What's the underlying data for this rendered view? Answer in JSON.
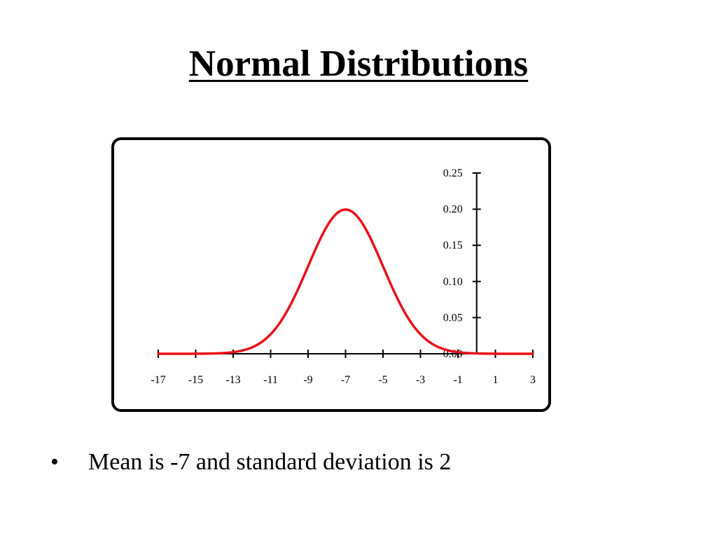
{
  "slide": {
    "title": "Normal Distributions",
    "bullets": [
      {
        "mark": "•",
        "text": "Mean is -7 and standard deviation is 2"
      }
    ]
  },
  "colors": {
    "curve": "#e8101a",
    "axis": "#000000"
  },
  "chart_data": {
    "type": "line",
    "title": "",
    "xlabel": "",
    "ylabel": "",
    "xlim": [
      -17,
      3
    ],
    "ylim": [
      0,
      0.25
    ],
    "xticks": [
      -17,
      -15,
      -13,
      -11,
      -9,
      -7,
      -5,
      -3,
      -1,
      1,
      3
    ],
    "xtick_labels": [
      "-17",
      "-15",
      "-13",
      "-11",
      "-9",
      "-7",
      "-5",
      "-3",
      "-1",
      "1",
      "3"
    ],
    "yticks": [
      0,
      0.05,
      0.1,
      0.15,
      0.2,
      0.25
    ],
    "ytick_labels": [
      "0.00",
      "0.05",
      "0.10",
      "0.15",
      "0.20",
      "0.25"
    ],
    "y_axis_at_x": 0,
    "grid": false,
    "legend": "none",
    "series": [
      {
        "distribution": "normal",
        "mean": -7,
        "std": 2,
        "x": [
          -17,
          -16,
          -15,
          -14,
          -13,
          -12,
          -11,
          -10,
          -9,
          -8,
          -7,
          -6,
          -5,
          -4,
          -3,
          -2,
          -1,
          0,
          1,
          2,
          3
        ],
        "y": [
          0.0,
          0.0,
          0.0001,
          0.0004,
          0.0022,
          0.0088,
          0.027,
          0.0648,
          0.121,
          0.176,
          0.1995,
          0.176,
          0.121,
          0.0648,
          0.027,
          0.0088,
          0.0022,
          0.0004,
          0.0001,
          0.0,
          0.0
        ]
      }
    ]
  }
}
